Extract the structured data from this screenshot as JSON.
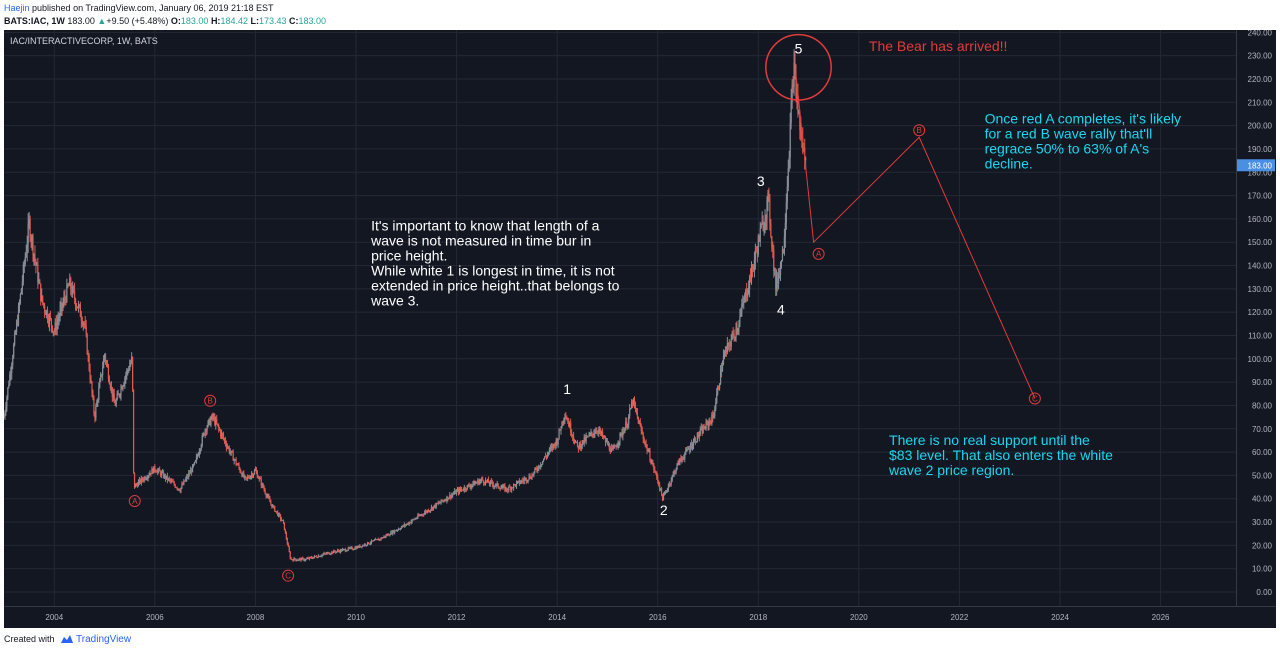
{
  "header": {
    "author": "Haejin",
    "published_text": "published on TradingView.com, January 06, 2019 21:18 EST",
    "symbol": "BATS:IAC, 1W",
    "last_price": "183.00",
    "change_arrow": "▲",
    "change": "+9.50 (+5.48%)",
    "open_label": "O:",
    "open": "183.00",
    "high_label": "H:",
    "high": "184.42",
    "low_label": "L:",
    "low": "173.43",
    "close_label": "C:",
    "close": "183.00"
  },
  "footer": {
    "created_with": "Created with",
    "brand": "TradingView"
  },
  "colors": {
    "background": "#131722",
    "grid": "#242835",
    "candle_up": "#8a8f97",
    "candle_down": "#e05a50",
    "wave_red": "#e03b3b",
    "annotation_cyan": "#19d7f0",
    "white": "#ffffff",
    "price_badge": "#4a90e2"
  },
  "chart_data": {
    "type": "candlestick",
    "title": "IAC/INTERACTIVECORP, 1W, BATS",
    "xlim": [
      2003.0,
      2027.5
    ],
    "ylim": [
      -6,
      241
    ],
    "y_ticks": [
      "0.00",
      "10.00",
      "20.00",
      "30.00",
      "40.00",
      "50.00",
      "60.00",
      "70.00",
      "80.00",
      "90.00",
      "100.00",
      "110.00",
      "120.00",
      "130.00",
      "140.00",
      "150.00",
      "160.00",
      "170.00",
      "180.00",
      "190.00",
      "200.00",
      "210.00",
      "220.00",
      "230.00",
      "240.00"
    ],
    "x_ticks": [
      "2004",
      "2006",
      "2008",
      "2010",
      "2012",
      "2014",
      "2016",
      "2018",
      "2020",
      "2022",
      "2024",
      "2026"
    ],
    "last_price_label": "183.00",
    "price_path": [
      [
        2003.0,
        75
      ],
      [
        2003.3,
        122
      ],
      [
        2003.5,
        158
      ],
      [
        2003.75,
        125
      ],
      [
        2004.0,
        112
      ],
      [
        2004.3,
        132
      ],
      [
        2004.6,
        115
      ],
      [
        2004.8,
        75
      ],
      [
        2005.0,
        102
      ],
      [
        2005.2,
        80
      ],
      [
        2005.4,
        92
      ],
      [
        2005.55,
        100
      ],
      [
        2005.58,
        45
      ],
      [
        2006.0,
        53
      ],
      [
        2006.5,
        44
      ],
      [
        2006.8,
        55
      ],
      [
        2007.0,
        70
      ],
      [
        2007.15,
        75
      ],
      [
        2007.5,
        60
      ],
      [
        2007.8,
        48
      ],
      [
        2008.0,
        52
      ],
      [
        2008.3,
        38
      ],
      [
        2008.55,
        30
      ],
      [
        2008.7,
        14
      ],
      [
        2009.0,
        14
      ],
      [
        2009.5,
        17
      ],
      [
        2010.0,
        19
      ],
      [
        2010.5,
        23
      ],
      [
        2011.0,
        29
      ],
      [
        2011.5,
        36
      ],
      [
        2012.0,
        43
      ],
      [
        2012.5,
        48
      ],
      [
        2013.0,
        44
      ],
      [
        2013.5,
        50
      ],
      [
        2014.0,
        65
      ],
      [
        2014.15,
        77
      ],
      [
        2014.4,
        62
      ],
      [
        2014.8,
        70
      ],
      [
        2015.1,
        60
      ],
      [
        2015.4,
        73
      ],
      [
        2015.5,
        82
      ],
      [
        2015.7,
        67
      ],
      [
        2016.0,
        48
      ],
      [
        2016.1,
        40
      ],
      [
        2016.4,
        55
      ],
      [
        2016.8,
        67
      ],
      [
        2017.1,
        75
      ],
      [
        2017.3,
        100
      ],
      [
        2017.6,
        115
      ],
      [
        2017.9,
        140
      ],
      [
        2018.0,
        150
      ],
      [
        2018.2,
        168
      ],
      [
        2018.35,
        130
      ],
      [
        2018.5,
        148
      ],
      [
        2018.6,
        185
      ],
      [
        2018.7,
        225
      ],
      [
        2018.85,
        195
      ],
      [
        2018.95,
        183
      ]
    ],
    "projection": {
      "color": "#e03b3b",
      "points": [
        [
          2018.75,
          222
        ],
        [
          2019.1,
          150
        ],
        [
          2021.2,
          195
        ],
        [
          2023.5,
          83
        ]
      ],
      "labels": [
        {
          "text": "A",
          "x": 2019.2,
          "y": 145
        },
        {
          "text": "B",
          "x": 2021.2,
          "y": 198
        },
        {
          "text": "C",
          "x": 2023.5,
          "y": 83
        }
      ]
    },
    "wave_labels_red": [
      {
        "text": "A",
        "x": 2005.6,
        "y": 39
      },
      {
        "text": "B",
        "x": 2007.1,
        "y": 82
      },
      {
        "text": "C",
        "x": 2008.65,
        "y": 7
      }
    ],
    "wave_labels_white": [
      {
        "text": "1",
        "x": 2014.2,
        "y": 85
      },
      {
        "text": "2",
        "x": 2016.12,
        "y": 33
      },
      {
        "text": "3",
        "x": 2018.05,
        "y": 174
      },
      {
        "text": "4",
        "x": 2018.45,
        "y": 119
      },
      {
        "text": "5",
        "x": 2018.8,
        "y": 231
      }
    ],
    "circle": {
      "x": 2018.8,
      "y": 225,
      "r_years": 0.65
    },
    "annotations": [
      {
        "text": "The Bear has arrived!!",
        "x": 2020.2,
        "y": 232,
        "color": "#e03b3b"
      },
      {
        "text": "It's important to know that length of a\nwave is not measured in time bur in\nprice height.\n\nWhile white 1 is longest in time, it is not\nextended in price height..that belongs to\nwave 3.",
        "x": 2010.3,
        "y": 155,
        "color": "#ffffff"
      },
      {
        "text": "Once red A completes, it's likely\nfor a red B wave rally that'll\nregrace 50% to 63% of A's\ndecline.",
        "x": 2022.5,
        "y": 201,
        "color": "#19d7f0"
      },
      {
        "text": "There is no real support until the\n$83 level. That also enters the white\nwave 2 price region.",
        "x": 2020.6,
        "y": 63,
        "color": "#19d7f0"
      }
    ]
  }
}
